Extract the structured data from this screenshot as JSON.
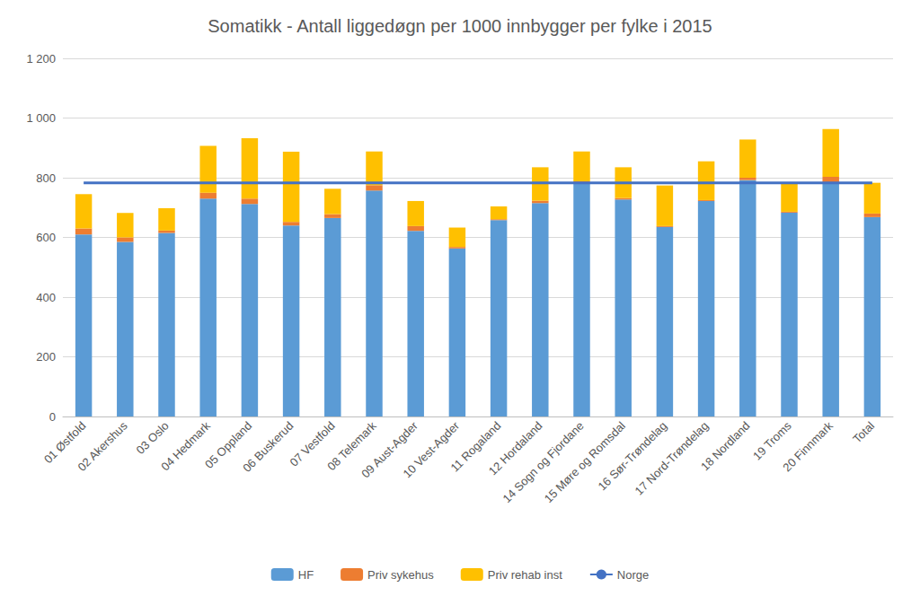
{
  "chart_data": {
    "type": "bar",
    "title": "Somatikk - Antall liggedøgn per 1000 innbygger per fylke i 2015",
    "categories": [
      "01 Østfold",
      "02 Akershus",
      "03 Oslo",
      "04 Hedmark",
      "05 Oppland",
      "06 Buskerud",
      "07 Vestfold",
      "08 Telemark",
      "09 Aust-Agder",
      "10 Vest-Agder",
      "11 Rogaland",
      "12 Hordaland",
      "14 Sogn og Fjordane",
      "15 Møre og Romsdal",
      "16 Sør-Trøndelag",
      "17 Nord-Trøndelag",
      "18 Nordland",
      "19 Troms",
      "20 Finnmark",
      "Total"
    ],
    "series": [
      {
        "name": "HF",
        "type": "bar",
        "color": "#5B9BD5",
        "values": [
          610,
          585,
          615,
          730,
          712,
          640,
          665,
          757,
          622,
          563,
          658,
          715,
          785,
          727,
          635,
          722,
          792,
          683,
          785,
          668
        ]
      },
      {
        "name": "Priv sykehus",
        "type": "bar",
        "color": "#ED7D31",
        "values": [
          20,
          15,
          8,
          20,
          18,
          12,
          13,
          18,
          16,
          5,
          3,
          8,
          3,
          5,
          3,
          3,
          8,
          3,
          18,
          12
        ]
      },
      {
        "name": "Priv rehab inst",
        "type": "bar",
        "color": "#FFC000",
        "values": [
          115,
          82,
          75,
          157,
          202,
          235,
          85,
          113,
          84,
          65,
          43,
          112,
          100,
          103,
          136,
          130,
          128,
          99,
          160,
          103
        ]
      },
      {
        "name": "Norge",
        "type": "line",
        "color": "#4472C4",
        "values": [
          783,
          783,
          783,
          783,
          783,
          783,
          783,
          783,
          783,
          783,
          783,
          783,
          783,
          783,
          783,
          783,
          783,
          783,
          783,
          783
        ]
      }
    ],
    "stacked": true,
    "ylim": [
      0,
      1200
    ],
    "yticks": [
      0,
      200,
      400,
      600,
      800,
      {
        "value": 1000,
        "label": "1 000"
      },
      {
        "value": 1200,
        "label": "1 200"
      }
    ],
    "grid": true,
    "legend": "bottom"
  }
}
